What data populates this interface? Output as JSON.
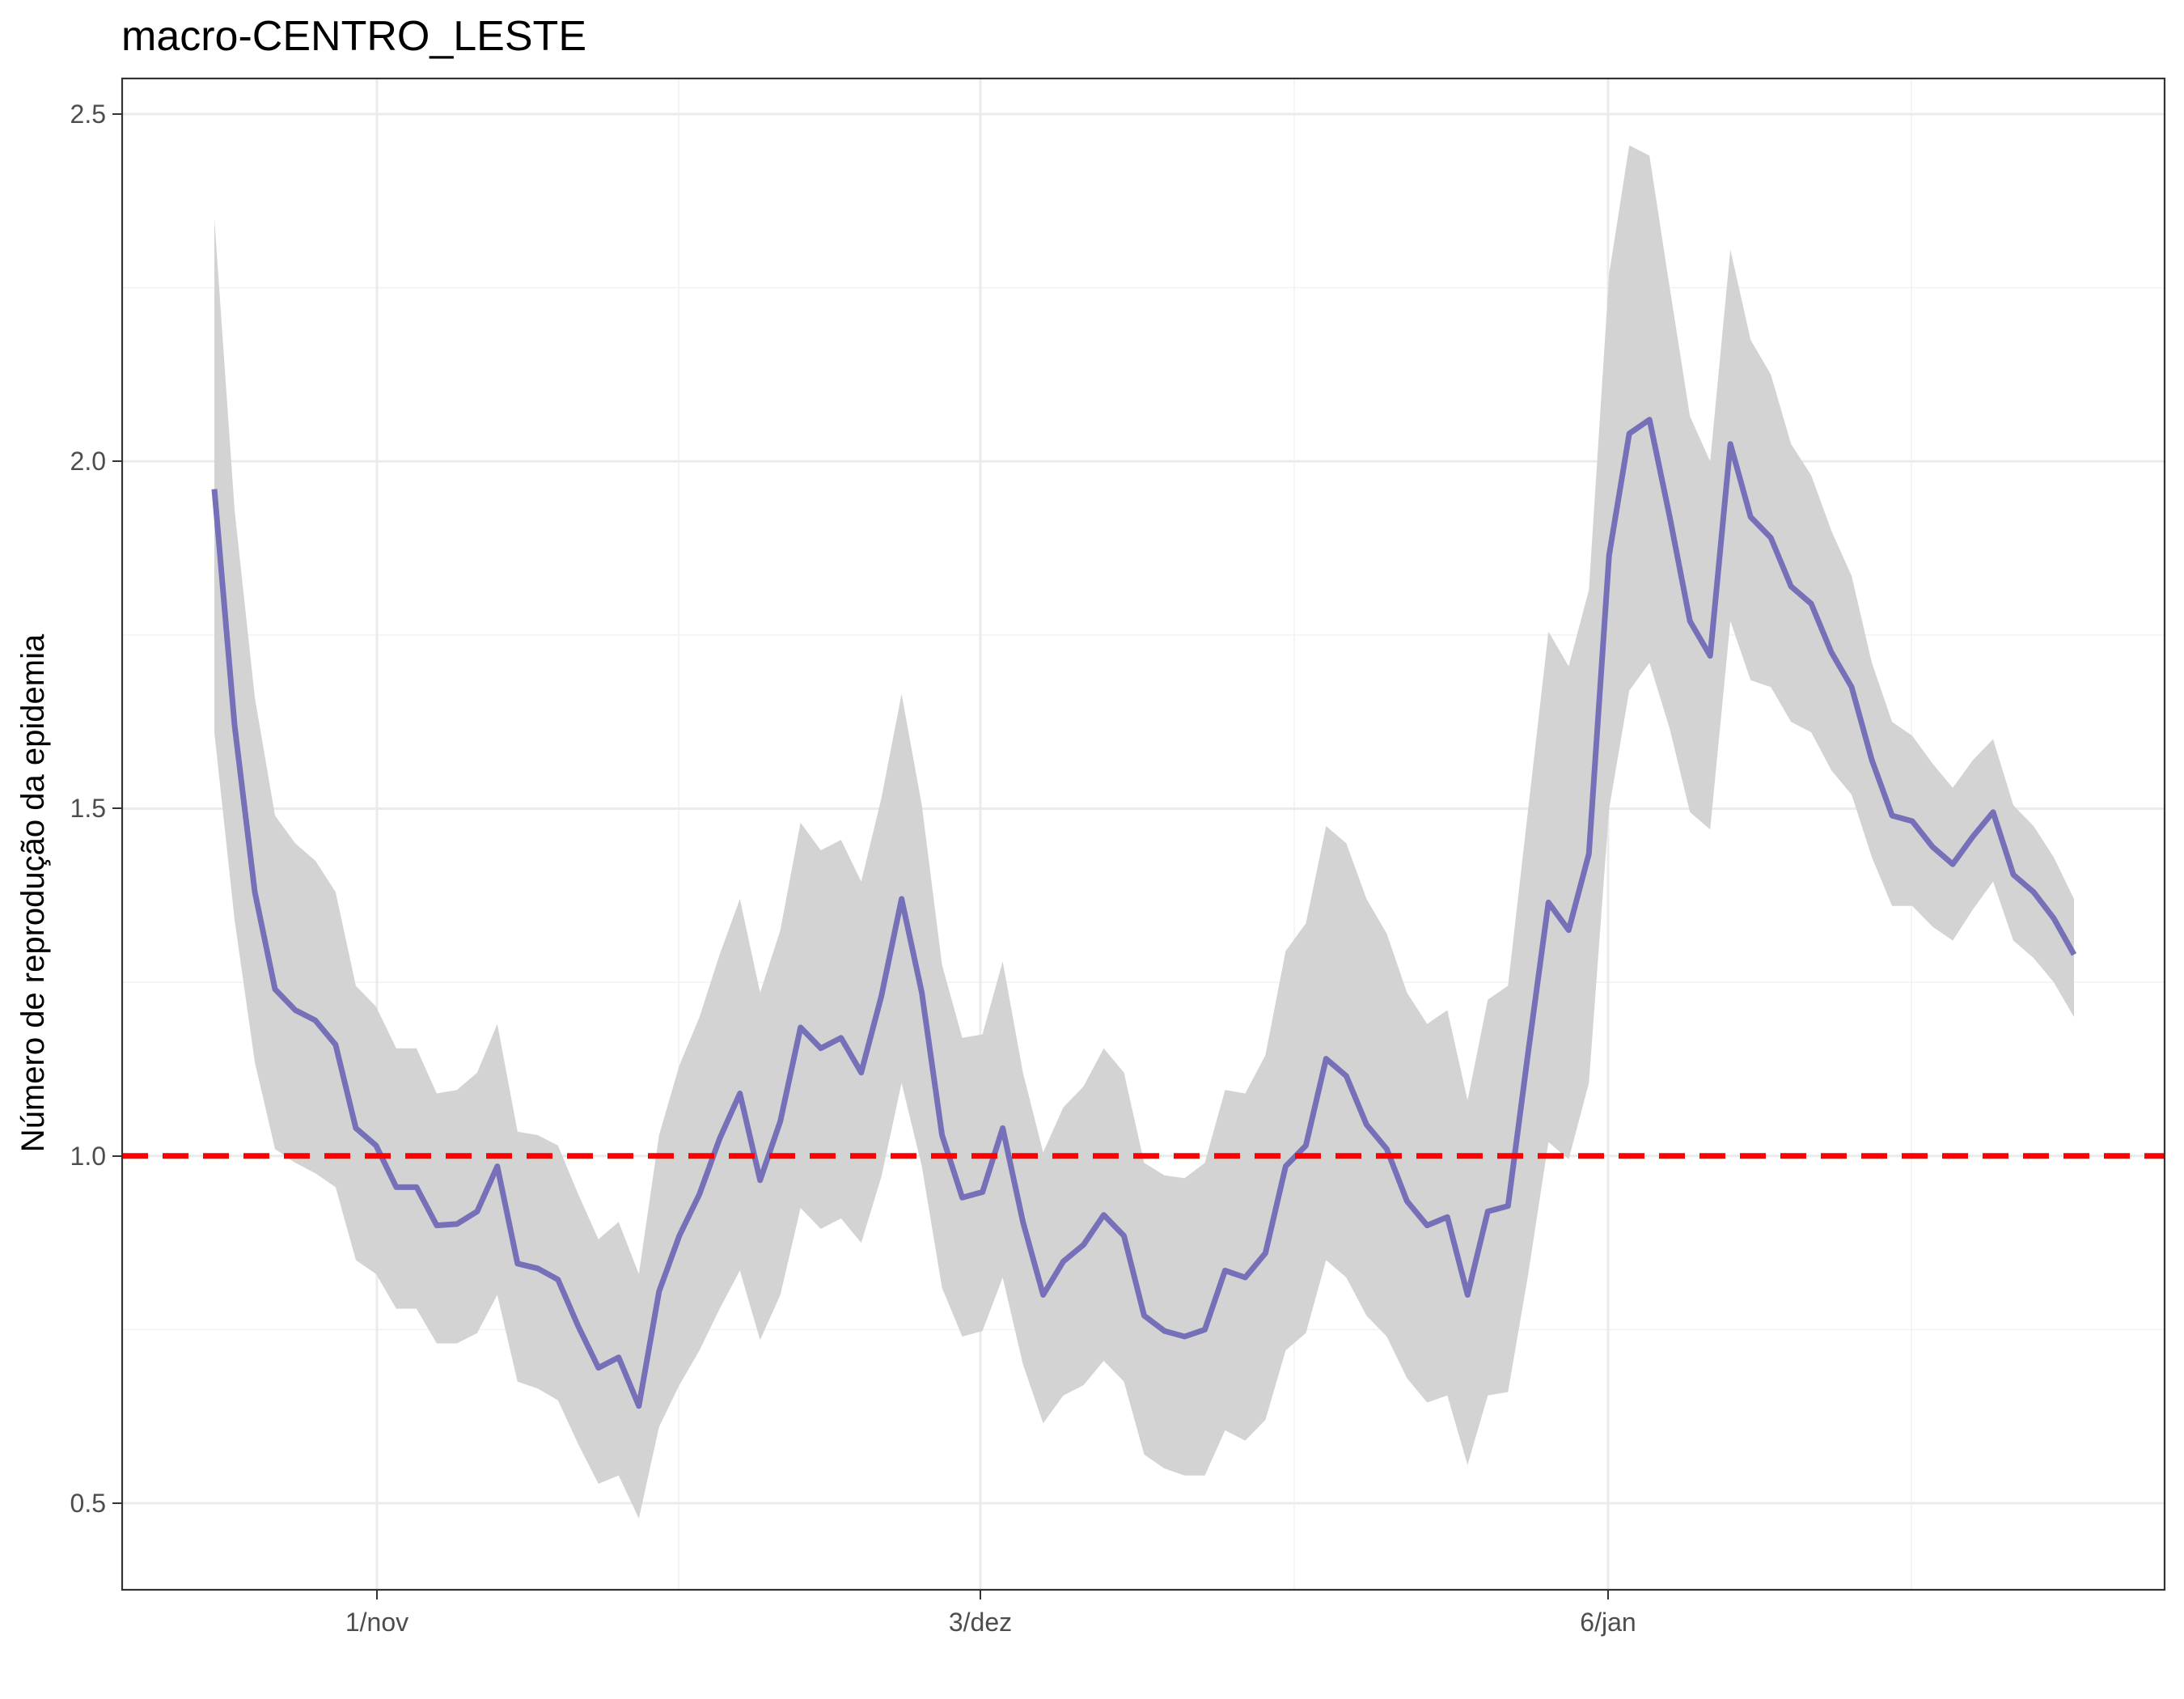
{
  "chart_data": {
    "type": "line",
    "title": "macro-CENTRO_LESTE",
    "xlabel": "",
    "ylabel": "Número de reprodução da epidemia",
    "ylim": [
      0.38,
      2.6
    ],
    "x_tick_labels": [
      "1/nov",
      "3/dez",
      "6/jan"
    ],
    "y_tick_labels": [
      "0.5",
      "1.0",
      "1.5",
      "2.0",
      "2.5"
    ],
    "y_ticks": [
      0.5,
      1.0,
      1.5,
      2.0,
      2.5
    ],
    "reference_line": {
      "y": 1.0,
      "style": "dashed",
      "color": "#ff0000"
    },
    "grid": true,
    "colors": {
      "line": "#7570b8",
      "ribbon": "#d3d3d3",
      "reference": "#ff0000"
    },
    "series": [
      {
        "values": [
          1.96,
          1.62,
          1.38,
          1.24,
          1.21,
          1.195,
          1.16,
          1.04,
          1.015,
          0.955,
          0.955,
          0.9,
          0.902,
          0.92,
          0.985,
          0.845,
          0.838,
          0.822,
          0.755,
          0.695,
          0.71,
          0.64,
          0.805,
          0.885,
          0.945,
          1.025,
          1.09,
          0.965,
          1.05,
          1.185,
          1.155,
          1.17,
          1.12,
          1.23,
          1.37,
          1.235,
          1.03,
          0.94,
          0.948,
          1.04,
          0.905,
          0.8,
          0.848,
          0.872,
          0.915,
          0.885,
          0.77,
          0.748,
          0.74,
          0.75,
          0.835,
          0.825,
          0.86,
          0.985,
          1.015,
          1.14,
          1.115,
          1.045,
          1.01,
          0.935,
          0.9,
          0.912,
          0.8,
          0.92,
          0.928,
          1.15,
          1.365,
          1.325,
          1.435,
          1.865,
          2.04,
          2.06,
          1.92,
          1.77,
          1.72,
          2.025,
          1.92,
          1.89,
          1.82,
          1.795,
          1.725,
          1.675,
          1.57,
          1.49,
          1.482,
          1.445,
          1.42,
          1.46,
          1.495,
          1.405,
          1.38,
          1.342,
          1.29
        ]
      },
      {
        "name": "upper",
        "values": [
          2.35,
          1.93,
          1.66,
          1.49,
          1.45,
          1.425,
          1.38,
          1.245,
          1.215,
          1.155,
          1.155,
          1.09,
          1.095,
          1.12,
          1.19,
          1.035,
          1.03,
          1.015,
          0.945,
          0.88,
          0.905,
          0.83,
          1.03,
          1.13,
          1.2,
          1.29,
          1.37,
          1.235,
          1.325,
          1.48,
          1.44,
          1.455,
          1.395,
          1.515,
          1.665,
          1.505,
          1.275,
          1.17,
          1.175,
          1.28,
          1.12,
          1.005,
          1.07,
          1.1,
          1.155,
          1.12,
          0.99,
          0.972,
          0.968,
          0.99,
          1.095,
          1.09,
          1.145,
          1.295,
          1.335,
          1.475,
          1.45,
          1.37,
          1.32,
          1.235,
          1.19,
          1.21,
          1.08,
          1.225,
          1.245,
          1.5,
          1.755,
          1.705,
          1.815,
          2.27,
          2.455,
          2.44,
          2.25,
          2.065,
          2.0,
          2.305,
          2.175,
          2.125,
          2.025,
          1.98,
          1.9,
          1.835,
          1.71,
          1.625,
          1.605,
          1.565,
          1.53,
          1.57,
          1.6,
          1.505,
          1.475,
          1.43,
          1.37
        ]
      },
      {
        "name": "lower",
        "values": [
          1.61,
          1.34,
          1.135,
          1.01,
          0.99,
          0.975,
          0.955,
          0.85,
          0.83,
          0.78,
          0.78,
          0.73,
          0.73,
          0.745,
          0.8,
          0.675,
          0.665,
          0.648,
          0.585,
          0.528,
          0.54,
          0.478,
          0.61,
          0.67,
          0.72,
          0.78,
          0.835,
          0.735,
          0.8,
          0.925,
          0.895,
          0.91,
          0.875,
          0.97,
          1.105,
          0.985,
          0.81,
          0.74,
          0.748,
          0.825,
          0.7,
          0.615,
          0.655,
          0.67,
          0.705,
          0.675,
          0.57,
          0.55,
          0.54,
          0.54,
          0.605,
          0.59,
          0.62,
          0.72,
          0.745,
          0.85,
          0.825,
          0.77,
          0.74,
          0.68,
          0.645,
          0.655,
          0.555,
          0.655,
          0.66,
          0.83,
          1.02,
          0.995,
          1.105,
          1.5,
          1.67,
          1.71,
          1.615,
          1.495,
          1.47,
          1.77,
          1.685,
          1.675,
          1.625,
          1.61,
          1.555,
          1.52,
          1.43,
          1.36,
          1.36,
          1.33,
          1.31,
          1.355,
          1.395,
          1.31,
          1.285,
          1.25,
          1.2
        ]
      }
    ]
  }
}
